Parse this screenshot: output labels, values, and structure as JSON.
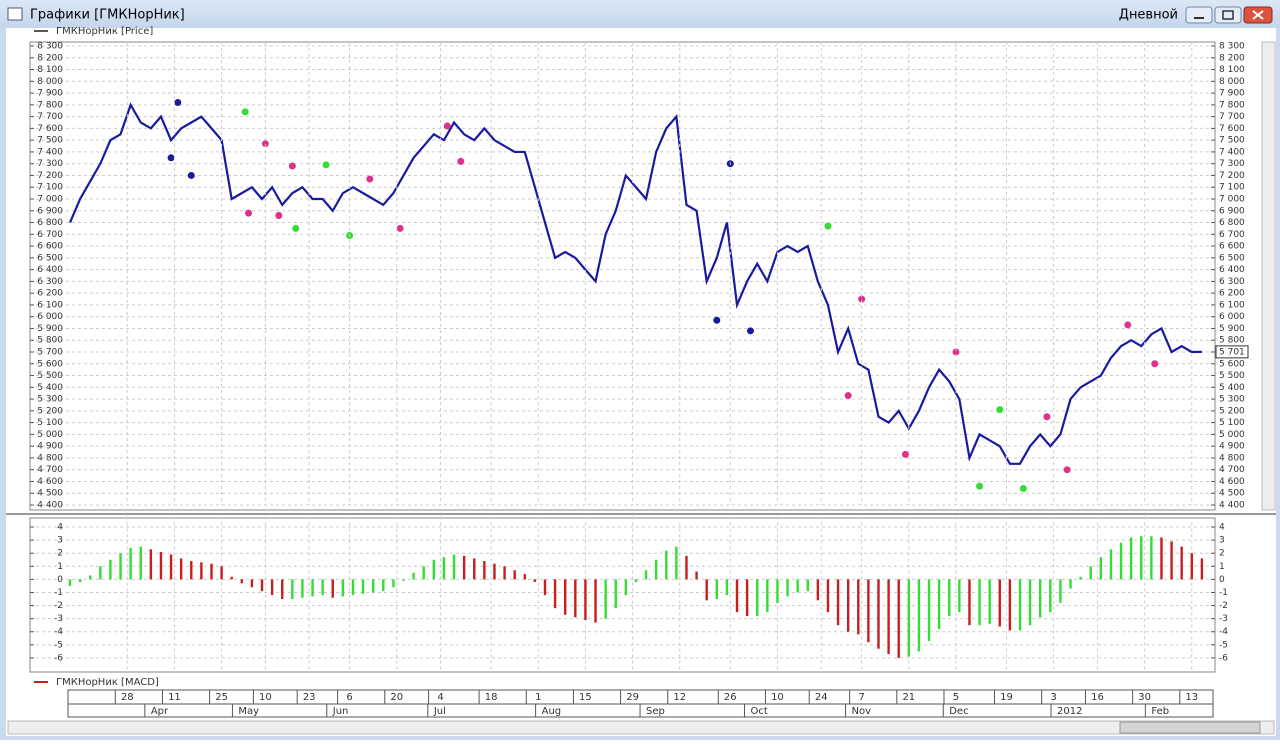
{
  "window": {
    "title": "Графики [ГМКНорНик]",
    "timeframe": "Дневной"
  },
  "chart_data": [
    {
      "type": "line",
      "legend": "ГМКНорНик [Price]",
      "series": [
        {
          "name": "ГМКНорНик [Price]",
          "color": "#1a1aa0",
          "x": [
            0,
            3,
            6,
            9,
            12,
            15,
            18,
            21,
            24,
            27,
            30,
            33,
            36,
            39,
            42,
            45,
            48,
            51,
            54,
            57,
            60,
            63,
            66,
            69,
            72,
            75,
            78,
            81,
            84,
            87,
            90,
            93,
            96,
            99,
            102,
            105,
            108,
            111,
            114,
            117,
            120,
            123,
            126,
            129,
            132,
            135,
            138,
            141,
            144,
            147,
            150,
            153,
            156,
            159,
            162,
            165,
            168,
            171,
            174,
            177,
            180,
            183,
            186,
            189,
            192,
            195,
            198,
            201,
            204,
            207,
            210,
            213,
            216,
            219,
            222,
            225,
            228,
            231,
            234,
            237,
            240,
            243,
            246,
            249,
            252,
            255,
            258,
            261,
            264,
            267,
            270,
            273,
            276,
            279,
            282,
            285,
            288,
            291,
            294,
            297,
            300,
            303,
            306,
            309,
            312,
            315,
            318,
            321,
            324,
            327,
            330,
            333,
            336
          ],
          "values": [
            6800,
            7000,
            7150,
            7300,
            7500,
            7550,
            7800,
            7650,
            7600,
            7700,
            7500,
            7600,
            7650,
            7700,
            7600,
            7500,
            7000,
            7050,
            7100,
            7000,
            7100,
            6950,
            7050,
            7100,
            7000,
            7000,
            6900,
            7050,
            7100,
            7050,
            7000,
            6950,
            7050,
            7200,
            7350,
            7450,
            7550,
            7500,
            7650,
            7550,
            7500,
            7600,
            7500,
            7450,
            7400,
            7400,
            7100,
            6800,
            6500,
            6550,
            6500,
            6400,
            6300,
            6700,
            6900,
            7200,
            7100,
            7000,
            7400,
            7600,
            7700,
            6950,
            6900,
            6300,
            6500,
            6800,
            6100,
            6300,
            6450,
            6300,
            6550,
            6600,
            6550,
            6600,
            6300,
            6100,
            5700,
            5900,
            5600,
            5550,
            5150,
            5100,
            5200,
            5050,
            5200,
            5400,
            5550,
            5450,
            5300,
            4800,
            5000,
            4950,
            4900,
            4750,
            4750,
            4900,
            5000,
            4900,
            5000,
            5300,
            5400,
            5450,
            5500,
            5650,
            5750,
            5800,
            5750,
            5850,
            5900,
            5700,
            5750,
            5700,
            5701
          ]
        }
      ],
      "markers": [
        {
          "color": "#1a1aa0",
          "x": [
            30,
            32,
            36,
            192,
            196,
            202
          ],
          "values": [
            7350,
            7820,
            7200,
            5970,
            7300,
            5880
          ]
        },
        {
          "color": "#33dd33",
          "x": [
            52,
            67,
            76,
            83,
            225,
            270,
            276,
            283
          ],
          "values": [
            7740,
            6750,
            7290,
            6690,
            6770,
            4560,
            5210,
            4540
          ]
        },
        {
          "color": "#e0308a",
          "x": [
            53,
            58,
            62,
            66,
            89,
            98,
            112,
            116,
            231,
            235,
            248,
            263,
            290,
            296,
            314,
            322
          ],
          "values": [
            6880,
            7470,
            6860,
            7280,
            7170,
            6750,
            7620,
            7320,
            5330,
            6150,
            4830,
            5700,
            5150,
            4700,
            5930,
            5600
          ]
        }
      ],
      "current_price": {
        "value": 5701,
        "label": "5 701"
      },
      "xlim": [
        0,
        339
      ],
      "ylim": [
        4400,
        8300
      ],
      "grid": true,
      "yticks": [
        {
          "value": 4400,
          "label": "4 400"
        },
        {
          "value": 4500,
          "label": "4 500"
        },
        {
          "value": 4600,
          "label": "4 600"
        },
        {
          "value": 4700,
          "label": "4 700"
        },
        {
          "value": 4800,
          "label": "4 800"
        },
        {
          "value": 4900,
          "label": "4 900"
        },
        {
          "value": 5000,
          "label": "5 000"
        },
        {
          "value": 5100,
          "label": "5 100"
        },
        {
          "value": 5200,
          "label": "5 200"
        },
        {
          "value": 5300,
          "label": "5 300"
        },
        {
          "value": 5400,
          "label": "5 400"
        },
        {
          "value": 5500,
          "label": "5 500"
        },
        {
          "value": 5600,
          "label": "5 600"
        },
        {
          "value": 5700,
          "label": "5 700"
        },
        {
          "value": 5800,
          "label": "5 800"
        },
        {
          "value": 5900,
          "label": "5 900"
        },
        {
          "value": 6000,
          "label": "6 000"
        },
        {
          "value": 6100,
          "label": "6 100"
        },
        {
          "value": 6200,
          "label": "6 200"
        },
        {
          "value": 6300,
          "label": "6 300"
        },
        {
          "value": 6400,
          "label": "6 400"
        },
        {
          "value": 6500,
          "label": "6 500"
        },
        {
          "value": 6600,
          "label": "6 600"
        },
        {
          "value": 6700,
          "label": "6 700"
        },
        {
          "value": 6800,
          "label": "6 800"
        },
        {
          "value": 6900,
          "label": "6 900"
        },
        {
          "value": 7000,
          "label": "7 000"
        },
        {
          "value": 7100,
          "label": "7 100"
        },
        {
          "value": 7200,
          "label": "7 200"
        },
        {
          "value": 7300,
          "label": "7 300"
        },
        {
          "value": 7400,
          "label": "7 400"
        },
        {
          "value": 7500,
          "label": "7 500"
        },
        {
          "value": 7600,
          "label": "7 600"
        },
        {
          "value": 7700,
          "label": "7 700"
        },
        {
          "value": 7800,
          "label": "7 800"
        },
        {
          "value": 7900,
          "label": "7 900"
        },
        {
          "value": 8000,
          "label": "8 000"
        },
        {
          "value": 8100,
          "label": "8 100"
        },
        {
          "value": 8200,
          "label": "8 200"
        },
        {
          "value": 8300,
          "label": "8 300"
        }
      ]
    },
    {
      "type": "bar",
      "legend": "ГМКНорНик [MACD]",
      "series": [
        {
          "name": "ГМКНорНик [MACD]",
          "color": "#c81e1e",
          "x": [
            0,
            3,
            6,
            9,
            12,
            15,
            18,
            21,
            24,
            27,
            30,
            33,
            36,
            39,
            42,
            45,
            48,
            51,
            54,
            57,
            60,
            63,
            66,
            69,
            72,
            75,
            78,
            81,
            84,
            87,
            90,
            93,
            96,
            99,
            102,
            105,
            108,
            111,
            114,
            117,
            120,
            123,
            126,
            129,
            132,
            135,
            138,
            141,
            144,
            147,
            150,
            153,
            156,
            159,
            162,
            165,
            168,
            171,
            174,
            177,
            180,
            183,
            186,
            189,
            192,
            195,
            198,
            201,
            204,
            207,
            210,
            213,
            216,
            219,
            222,
            225,
            228,
            231,
            234,
            237,
            240,
            243,
            246,
            249,
            252,
            255,
            258,
            261,
            264,
            267,
            270,
            273,
            276,
            279,
            282,
            285,
            288,
            291,
            294,
            297,
            300,
            303,
            306,
            309,
            312,
            315,
            318,
            321,
            324,
            327,
            330,
            333,
            336
          ],
          "values": [
            -0.5,
            -0.2,
            0.3,
            1,
            1.5,
            2,
            2.4,
            2.5,
            2.3,
            2.1,
            1.9,
            1.6,
            1.4,
            1.3,
            1.2,
            1.0,
            0.2,
            -0.3,
            -0.6,
            -0.9,
            -1.2,
            -1.5,
            -1.5,
            -1.4,
            -1.3,
            -1.2,
            -1.4,
            -1.3,
            -1.2,
            -1.1,
            -1.0,
            -0.9,
            -0.6,
            -0.1,
            0.5,
            1.0,
            1.5,
            1.7,
            1.9,
            1.8,
            1.6,
            1.4,
            1.2,
            1.0,
            0.7,
            0.4,
            -0.2,
            -1.2,
            -2.2,
            -2.7,
            -2.9,
            -3.1,
            -3.3,
            -3.0,
            -2.2,
            -1.2,
            -0.2,
            0.7,
            1.5,
            2.2,
            2.5,
            1.8,
            0.6,
            -1.6,
            -1.5,
            -1.2,
            -2.5,
            -2.8,
            -2.8,
            -2.5,
            -1.8,
            -1.3,
            -1.0,
            -0.9,
            -1.6,
            -2.5,
            -3.5,
            -4.0,
            -4.2,
            -4.8,
            -5.3,
            -5.7,
            -6.0,
            -5.9,
            -5.5,
            -4.7,
            -3.8,
            -2.8,
            -2.5,
            -3.5,
            -3.5,
            -3.4,
            -3.6,
            -3.9,
            -3.9,
            -3.5,
            -2.9,
            -2.5,
            -1.8,
            -0.7,
            0.2,
            1.0,
            1.7,
            2.3,
            2.8,
            3.2,
            3.3,
            3.3,
            3.2,
            2.9,
            2.5,
            2.0,
            1.6
          ]
        }
      ],
      "rising_color": "#33dd33",
      "falling_color": "#c81e1e",
      "xlim": [
        0,
        339
      ],
      "ylim": [
        -7,
        4.5
      ],
      "grid": true,
      "yticks": [
        -6,
        -5,
        -4,
        -3,
        -2,
        -1,
        0,
        1,
        2,
        3,
        4
      ],
      "xticks": [
        {
          "value": 17,
          "label": "28"
        },
        {
          "value": 31,
          "label": "11"
        },
        {
          "value": 45,
          "label": "25"
        },
        {
          "value": 58,
          "label": "10"
        },
        {
          "value": 71,
          "label": "23"
        },
        {
          "value": 83,
          "label": "6"
        },
        {
          "value": 97,
          "label": "20"
        },
        {
          "value": 110,
          "label": "4"
        },
        {
          "value": 125,
          "label": "18"
        },
        {
          "value": 139,
          "label": "1"
        },
        {
          "value": 153,
          "label": "15"
        },
        {
          "value": 167,
          "label": "29"
        },
        {
          "value": 181,
          "label": "12"
        },
        {
          "value": 196,
          "label": "26"
        },
        {
          "value": 210,
          "label": "10"
        },
        {
          "value": 223,
          "label": "24"
        },
        {
          "value": 235,
          "label": "7"
        },
        {
          "value": 249,
          "label": "21"
        },
        {
          "value": 263,
          "label": "5"
        },
        {
          "value": 278,
          "label": "19"
        },
        {
          "value": 292,
          "label": "3"
        },
        {
          "value": 305,
          "label": "16"
        },
        {
          "value": 319,
          "label": "30"
        },
        {
          "value": 333,
          "label": "13"
        }
      ],
      "month_ticks": [
        {
          "value": 24,
          "label": "Apr"
        },
        {
          "value": 50,
          "label": "May"
        },
        {
          "value": 78,
          "label": "Jun"
        },
        {
          "value": 108,
          "label": "Jul"
        },
        {
          "value": 140,
          "label": "Aug"
        },
        {
          "value": 171,
          "label": "Sep"
        },
        {
          "value": 202,
          "label": "Oct"
        },
        {
          "value": 232,
          "label": "Nov"
        },
        {
          "value": 261,
          "label": "Dec"
        },
        {
          "value": 293,
          "label": "2012"
        },
        {
          "value": 321,
          "label": "Feb"
        }
      ]
    }
  ]
}
